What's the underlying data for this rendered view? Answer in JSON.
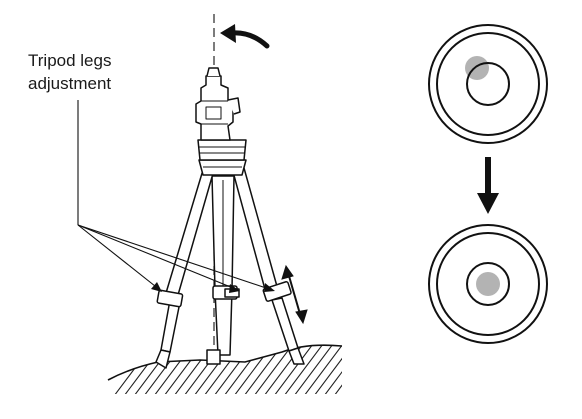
{
  "callout": {
    "line1": "Tripod legs",
    "line2": "adjustment"
  },
  "colors": {
    "ink": "#111111",
    "bubble": "#b3b3b3",
    "ground_hatch": "#222222",
    "background": "#ffffff"
  },
  "level_vial": {
    "before": {
      "bubble_state": "off-center"
    },
    "after": {
      "bubble_state": "centered"
    }
  },
  "icons": {
    "rotation": "curved-arrow-icon",
    "transition": "down-arrow-icon",
    "length_adjust": "double-arrow-icon"
  }
}
